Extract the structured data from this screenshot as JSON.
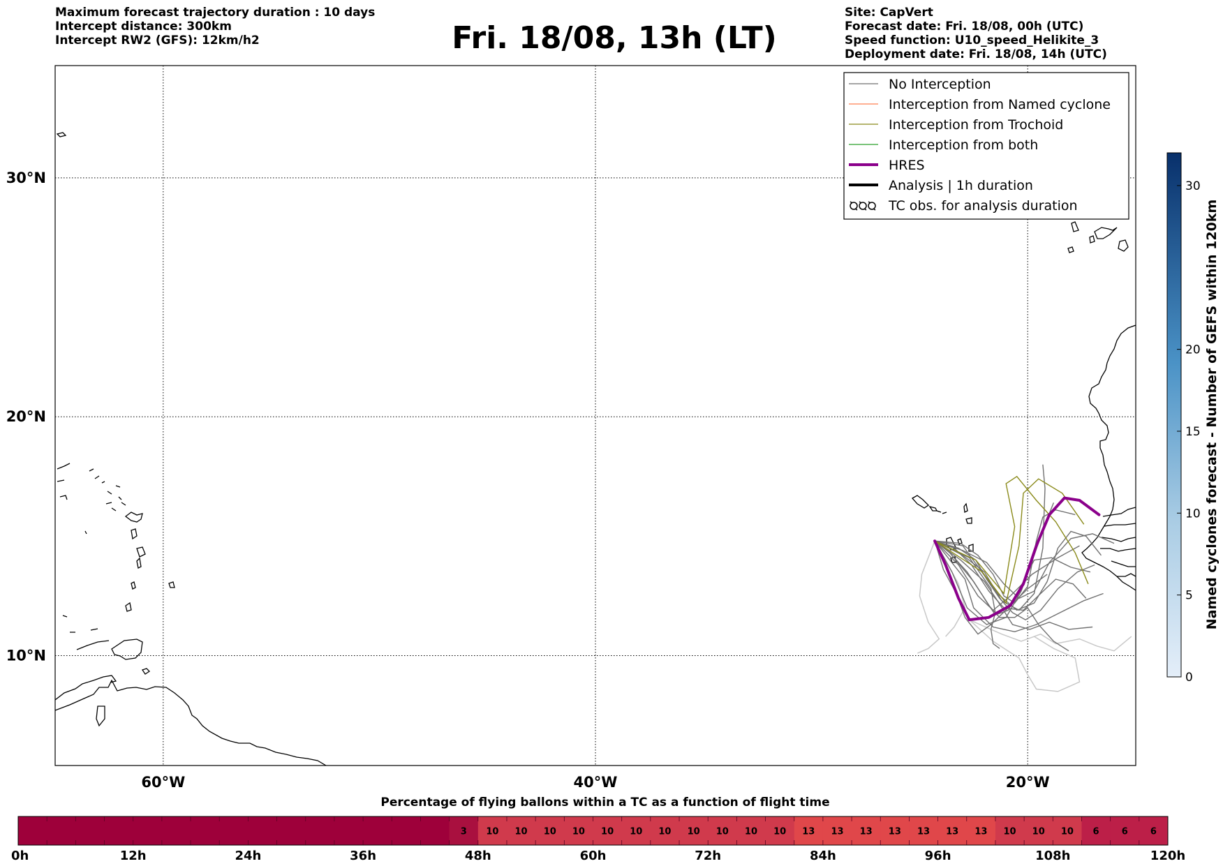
{
  "header": {
    "left_lines": [
      "Maximum forecast trajectory duration : 10 days",
      "Intercept distance: 300km",
      "Intercept RW2 (GFS):  12km/h2"
    ],
    "title": "Fri. 18/08, 13h (LT)",
    "right_lines": [
      "Site: CapVert",
      "Forecast date: Fri. 18/08, 00h (UTC)",
      "Speed function: U10_speed_Helikite_3",
      "Deployment date: Fri. 18/08, 14h (UTC)"
    ]
  },
  "map": {
    "lon_min": -65,
    "lon_max": -15,
    "lat_min": 5.4,
    "lat_max": 34.7,
    "lon_ticks": [
      {
        "lon": -60,
        "label": "60°W"
      },
      {
        "lon": -40,
        "label": "40°W"
      },
      {
        "lon": -20,
        "label": "20°W"
      }
    ],
    "lat_ticks": [
      {
        "lat": 10,
        "label": "10°N"
      },
      {
        "lat": 20,
        "label": "20°N"
      },
      {
        "lat": 30,
        "label": "30°N"
      }
    ],
    "grid": "dotted",
    "colors": {
      "no_interception": "#707070",
      "early_no_interception": "#c8c8c8",
      "named": "#ff7f50",
      "trochoid": "#8a8a1a",
      "both": "#2ca02c",
      "hres": "#8b008b",
      "analysis": "#000000"
    },
    "hres_track": [
      [
        -16.7,
        15.9
      ],
      [
        -17.6,
        16.5
      ],
      [
        -18.3,
        16.6
      ],
      [
        -19.0,
        15.9
      ],
      [
        -19.6,
        14.6
      ],
      [
        -20.2,
        13.0
      ],
      [
        -20.8,
        12.1
      ],
      [
        -21.8,
        11.6
      ],
      [
        -22.7,
        11.5
      ],
      [
        -23.2,
        12.4
      ],
      [
        -23.8,
        13.8
      ],
      [
        -24.3,
        14.8
      ]
    ],
    "trochoid_tracks": [
      [
        [
          -24.3,
          14.8
        ],
        [
          -22.4,
          14.0
        ],
        [
          -21.1,
          12.6
        ],
        [
          -20.6,
          15.4
        ],
        [
          -21.0,
          17.2
        ],
        [
          -20.5,
          17.5
        ],
        [
          -19.6,
          16.5
        ],
        [
          -18.7,
          15.6
        ],
        [
          -17.8,
          14.3
        ],
        [
          -17.2,
          13.0
        ]
      ],
      [
        [
          -24.3,
          14.8
        ],
        [
          -22.1,
          13.5
        ],
        [
          -21.0,
          12.2
        ],
        [
          -20.4,
          14.6
        ],
        [
          -20.2,
          16.8
        ],
        [
          -19.5,
          17.4
        ],
        [
          -18.4,
          16.8
        ],
        [
          -17.4,
          15.5
        ]
      ]
    ],
    "gray_tracks": [
      [
        [
          -24.3,
          14.8
        ],
        [
          -23.5,
          13.5
        ],
        [
          -22.8,
          12.0
        ],
        [
          -21.9,
          11.3
        ],
        [
          -21.0,
          11.6
        ],
        [
          -20.3,
          12.7
        ],
        [
          -19.7,
          14.2
        ],
        [
          -19.2,
          15.5
        ],
        [
          -18.8,
          16.4
        ]
      ],
      [
        [
          -24.3,
          14.8
        ],
        [
          -23.2,
          13.8
        ],
        [
          -22.3,
          12.5
        ],
        [
          -21.6,
          11.9
        ],
        [
          -20.8,
          12.5
        ],
        [
          -19.8,
          13.4
        ],
        [
          -18.6,
          14.1
        ],
        [
          -17.6,
          14.6
        ]
      ],
      [
        [
          -24.3,
          14.8
        ],
        [
          -23.0,
          14.2
        ],
        [
          -22.0,
          13.5
        ],
        [
          -21.2,
          12.3
        ],
        [
          -20.4,
          11.9
        ],
        [
          -19.7,
          12.6
        ],
        [
          -19.3,
          14.5
        ],
        [
          -19.2,
          17.0
        ],
        [
          -19.3,
          18.0
        ]
      ],
      [
        [
          -24.3,
          14.8
        ],
        [
          -23.4,
          14.5
        ],
        [
          -22.6,
          13.8
        ],
        [
          -21.8,
          12.7
        ],
        [
          -21.1,
          12.0
        ],
        [
          -20.2,
          11.9
        ],
        [
          -19.4,
          12.6
        ],
        [
          -18.7,
          13.2
        ],
        [
          -17.9,
          13.0
        ],
        [
          -17.3,
          12.4
        ]
      ],
      [
        [
          -24.3,
          14.8
        ],
        [
          -23.9,
          13.6
        ],
        [
          -23.3,
          12.6
        ],
        [
          -22.9,
          11.6
        ],
        [
          -22.3,
          10.9
        ],
        [
          -21.7,
          11.3
        ],
        [
          -20.9,
          12.0
        ],
        [
          -20.0,
          12.8
        ],
        [
          -19.1,
          13.4
        ]
      ],
      [
        [
          -24.3,
          14.8
        ],
        [
          -23.1,
          14.0
        ],
        [
          -22.0,
          13.1
        ],
        [
          -21.4,
          12.3
        ],
        [
          -20.7,
          11.3
        ],
        [
          -19.9,
          11.1
        ],
        [
          -19.0,
          11.4
        ],
        [
          -18.1,
          11.1
        ],
        [
          -17.0,
          11.2
        ]
      ],
      [
        [
          -24.3,
          14.8
        ],
        [
          -23.0,
          14.4
        ],
        [
          -21.9,
          13.9
        ],
        [
          -21.1,
          13.0
        ],
        [
          -20.4,
          12.4
        ],
        [
          -19.7,
          12.7
        ],
        [
          -19.0,
          13.9
        ],
        [
          -18.0,
          14.9
        ],
        [
          -17.0,
          15.1
        ],
        [
          -16.0,
          14.7
        ]
      ],
      [
        [
          -24.3,
          14.8
        ],
        [
          -23.6,
          14.3
        ],
        [
          -22.5,
          13.1
        ],
        [
          -21.8,
          12.1
        ],
        [
          -21.3,
          11.6
        ],
        [
          -20.6,
          11.6
        ],
        [
          -20.0,
          12.0
        ],
        [
          -19.5,
          11.3
        ],
        [
          -18.8,
          10.6
        ],
        [
          -18.1,
          10.2
        ]
      ],
      [
        [
          -24.3,
          14.8
        ],
        [
          -23.1,
          14.7
        ],
        [
          -22.3,
          14.2
        ],
        [
          -21.6,
          13.4
        ],
        [
          -21.1,
          12.5
        ],
        [
          -20.6,
          12.2
        ],
        [
          -20.0,
          12.9
        ],
        [
          -19.6,
          14.8
        ],
        [
          -19.3,
          15.8
        ],
        [
          -18.7,
          16.1
        ],
        [
          -17.8,
          15.9
        ]
      ],
      [
        [
          -24.3,
          14.8
        ],
        [
          -22.7,
          14.1
        ],
        [
          -21.7,
          12.8
        ],
        [
          -21.5,
          11.8
        ],
        [
          -21.7,
          11.1
        ],
        [
          -21.6,
          10.5
        ],
        [
          -21.3,
          10.3
        ]
      ],
      [
        [
          -24.3,
          14.8
        ],
        [
          -23.0,
          14.6
        ],
        [
          -22.2,
          13.6
        ],
        [
          -21.4,
          12.6
        ],
        [
          -20.5,
          11.9
        ],
        [
          -19.7,
          12.2
        ],
        [
          -19.1,
          13.1
        ],
        [
          -18.6,
          14.5
        ],
        [
          -18.0,
          15.2
        ],
        [
          -17.3,
          15.0
        ],
        [
          -16.6,
          14.2
        ]
      ],
      [
        [
          -24.3,
          14.8
        ],
        [
          -22.9,
          13.2
        ],
        [
          -22.5,
          12.0
        ],
        [
          -21.6,
          11.2
        ],
        [
          -20.6,
          11.0
        ],
        [
          -19.6,
          11.3
        ],
        [
          -18.5,
          11.8
        ],
        [
          -17.4,
          12.3
        ],
        [
          -16.5,
          12.6
        ]
      ],
      [
        [
          -24.3,
          14.8
        ],
        [
          -23.7,
          14.4
        ],
        [
          -22.8,
          13.5
        ],
        [
          -22.0,
          12.4
        ],
        [
          -21.5,
          11.7
        ],
        [
          -20.9,
          11.9
        ],
        [
          -20.2,
          13.1
        ],
        [
          -19.7,
          14.0
        ],
        [
          -18.9,
          14.1
        ],
        [
          -18.0,
          13.7
        ],
        [
          -17.1,
          13.5
        ]
      ],
      [
        [
          -24.3,
          14.8
        ],
        [
          -23.2,
          14.5
        ],
        [
          -22.4,
          14.0
        ],
        [
          -21.9,
          13.2
        ],
        [
          -21.3,
          12.4
        ],
        [
          -20.7,
          11.8
        ],
        [
          -20.1,
          11.5
        ],
        [
          -19.4,
          11.9
        ],
        [
          -18.6,
          12.8
        ],
        [
          -17.7,
          13.5
        ],
        [
          -16.9,
          13.8
        ]
      ]
    ],
    "light_tracks": [
      [
        [
          -24.3,
          14.8
        ],
        [
          -24.9,
          13.4
        ],
        [
          -25.0,
          12.5
        ],
        [
          -24.6,
          11.4
        ],
        [
          -24.1,
          10.7
        ],
        [
          -24.6,
          10.3
        ],
        [
          -25.1,
          10.1
        ]
      ],
      [
        [
          -22.7,
          11.5
        ],
        [
          -21.6,
          10.6
        ],
        [
          -20.4,
          9.9
        ],
        [
          -20.0,
          9.2
        ],
        [
          -19.6,
          8.6
        ],
        [
          -18.6,
          8.5
        ],
        [
          -17.6,
          8.9
        ],
        [
          -17.8,
          9.9
        ],
        [
          -18.8,
          10.3
        ],
        [
          -19.7,
          10.8
        ]
      ],
      [
        [
          -22.7,
          11.5
        ],
        [
          -21.2,
          10.9
        ],
        [
          -20.3,
          10.6
        ],
        [
          -19.4,
          10.9
        ],
        [
          -18.7,
          10.5
        ],
        [
          -17.6,
          10.7
        ],
        [
          -16.8,
          10.4
        ],
        [
          -16.0,
          10.2
        ],
        [
          -15.2,
          10.8
        ]
      ],
      [
        [
          -24.3,
          14.8
        ],
        [
          -23.2,
          13.0
        ],
        [
          -22.9,
          12.0
        ],
        [
          -23.4,
          11.2
        ],
        [
          -23.8,
          10.8
        ]
      ]
    ]
  },
  "legend": {
    "items": [
      {
        "label": "No Interception",
        "type": "line",
        "color": "#707070",
        "width": 1.3
      },
      {
        "label": "Interception from Named cyclone",
        "type": "line",
        "color": "#ff7f50",
        "width": 1.3
      },
      {
        "label": "Interception from Trochoid",
        "type": "line",
        "color": "#8a8a1a",
        "width": 1.3
      },
      {
        "label": "Interception from both",
        "type": "line",
        "color": "#2ca02c",
        "width": 1.3
      },
      {
        "label": "HRES",
        "type": "line",
        "color": "#8b008b",
        "width": 4
      },
      {
        "label": "Analysis | 1h duration",
        "type": "line",
        "color": "#000000",
        "width": 4
      },
      {
        "label": "TC obs. for analysis duration",
        "type": "symbol",
        "color": "#000000",
        "width": 1.5
      }
    ]
  },
  "colorbar": {
    "label": "Named cyclones forecast - Number of GEFS within 120km",
    "min": 0,
    "max": 32,
    "ticks": [
      0,
      5,
      10,
      15,
      20,
      30
    ]
  },
  "timebar": {
    "title": "Percentage of flying ballons within a TC as a function of flight time",
    "ticks": [
      "0h",
      "12h",
      "24h",
      "36h",
      "48h",
      "60h",
      "72h",
      "84h",
      "96h",
      "108h",
      "120h"
    ],
    "values": [
      0,
      0,
      0,
      0,
      0,
      0,
      0,
      0,
      0,
      0,
      0,
      0,
      0,
      0,
      0,
      3,
      10,
      10,
      10,
      10,
      10,
      10,
      10,
      10,
      10,
      10,
      10,
      13,
      13,
      13,
      13,
      13,
      13,
      13,
      10,
      10,
      10,
      6,
      6,
      6
    ],
    "labels": [
      "",
      "",
      "",
      "",
      "",
      "",
      "",
      "",
      "",
      "",
      "",
      "",
      "",
      "",
      "",
      "3",
      "10",
      "10",
      "10",
      "10",
      "10",
      "10",
      "10",
      "10",
      "10",
      "10",
      "10",
      "13",
      "13",
      "13",
      "13",
      "13",
      "13",
      "13",
      "10",
      "10",
      "10",
      "6",
      "6",
      "6"
    ]
  }
}
